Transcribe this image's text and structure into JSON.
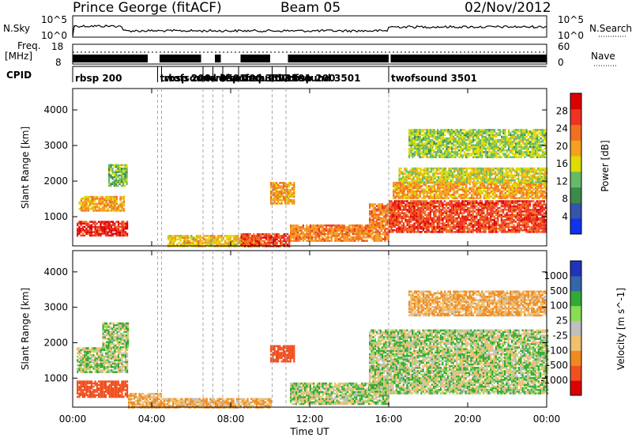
{
  "header": {
    "station": "Prince George (fitACF)",
    "beam": "Beam 05",
    "date": "02/Nov/2012"
  },
  "top_panels": {
    "nsky_label": "N.Sky",
    "nsky_ticks": [
      "10^5",
      "10^0"
    ],
    "nsearch_label": "N.Search",
    "nsearch_ticks": [
      "10^5",
      "10^0"
    ],
    "freq_label": "Freq.",
    "freq_unit": "[MHz]",
    "freq_ticks": [
      "18",
      "8"
    ],
    "nave_label": "Nave",
    "nave_ticks": [
      "60",
      "0"
    ],
    "cpid_label": "CPID"
  },
  "cpid_segments": [
    {
      "label": "rbsp 200",
      "start_hr": 0.0
    },
    {
      "label": "twofsound 3501",
      "start_hr": 4.3
    },
    {
      "label": "rbsp 200",
      "start_hr": 4.5
    },
    {
      "label": "twofsound 3501",
      "start_hr": 6.6
    },
    {
      "label": "rbsp 200",
      "start_hr": 7.1
    },
    {
      "label": "twofsound 3501",
      "start_hr": 7.6
    },
    {
      "label": "rbsp 200",
      "start_hr": 8.4
    },
    {
      "label": "twofsound 3501",
      "start_hr": 10.1
    },
    {
      "label": "rbsp 200",
      "start_hr": 10.8
    },
    {
      "label": "twofsound 3501",
      "start_hr": 16.0
    }
  ],
  "x_axis": {
    "label": "Time UT",
    "ticks": [
      "00:00",
      "04:00",
      "08:00",
      "12:00",
      "16:00",
      "20:00",
      "00:00"
    ]
  },
  "y_axis": {
    "label": "Slant Range [km]",
    "ticks": [
      "1000",
      "2000",
      "3000",
      "4000"
    ]
  },
  "power_colorbar": {
    "label": "Power [dB]",
    "ticks": [
      "4",
      "8",
      "12",
      "16",
      "20",
      "24",
      "28"
    ],
    "colors": [
      "#1133ee",
      "#3355aa",
      "#3d8a4a",
      "#66bb66",
      "#dddd00",
      "#f4a020",
      "#f07020",
      "#ee3322",
      "#dd0000"
    ]
  },
  "velocity_colorbar": {
    "label": "Velocity [m s^-1]",
    "ticks": [
      "1000",
      "500",
      "100",
      "25",
      "-25",
      "-100",
      "-500",
      "-1000"
    ],
    "colors": [
      "#2233bb",
      "#3366aa",
      "#33aa33",
      "#88dd55",
      "#bfbfbf",
      "#eec070",
      "#f08a20",
      "#f05020",
      "#dd0000"
    ]
  },
  "chart_data": [
    {
      "type": "heatmap",
      "title": "",
      "xlabel": "Time UT",
      "ylabel": "Slant Range [km]",
      "colorbar_label": "Power [dB]",
      "xlim_hr": [
        0,
        24
      ],
      "ylim_km": [
        180,
        4600
      ],
      "clim_db": [
        0,
        32
      ],
      "bands": [
        {
          "t0": 0.2,
          "t1": 2.8,
          "r0": 500,
          "r1": 900,
          "value": 28
        },
        {
          "t0": 0.3,
          "t1": 2.6,
          "r0": 1200,
          "r1": 1600,
          "value": 20
        },
        {
          "t0": 1.8,
          "t1": 2.7,
          "r0": 1900,
          "r1": 2500,
          "value": 12
        },
        {
          "t0": 4.8,
          "t1": 9.5,
          "r0": 200,
          "r1": 500,
          "value": 18
        },
        {
          "t0": 8.5,
          "t1": 11.0,
          "r0": 200,
          "r1": 550,
          "value": 26
        },
        {
          "t0": 10.0,
          "t1": 11.2,
          "r0": 1400,
          "r1": 2000,
          "value": 20
        },
        {
          "t0": 11.0,
          "t1": 16.0,
          "r0": 350,
          "r1": 800,
          "value": 22
        },
        {
          "t0": 15.0,
          "t1": 16.5,
          "r0": 800,
          "r1": 1400,
          "value": 22
        },
        {
          "t0": 16.0,
          "t1": 24.0,
          "r0": 600,
          "r1": 1500,
          "value": 26
        },
        {
          "t0": 16.2,
          "t1": 24.0,
          "r0": 1550,
          "r1": 2000,
          "value": 20
        },
        {
          "t0": 16.5,
          "t1": 24.0,
          "r0": 2000,
          "r1": 2400,
          "value": 16
        },
        {
          "t0": 17.0,
          "t1": 24.0,
          "r0": 2700,
          "r1": 3500,
          "value": 14
        }
      ]
    },
    {
      "type": "heatmap",
      "title": "",
      "xlabel": "Time UT",
      "ylabel": "Slant Range [km]",
      "colorbar_label": "Velocity [m s^-1]",
      "xlim_hr": [
        0,
        24
      ],
      "ylim_km": [
        180,
        4600
      ],
      "clim_ms": [
        -1000,
        1000
      ],
      "bands": [
        {
          "t0": 0.2,
          "t1": 2.8,
          "r0": 500,
          "r1": 950,
          "value": -500
        },
        {
          "t0": 0.2,
          "t1": 2.8,
          "r0": 1200,
          "r1": 1900,
          "value": 0
        },
        {
          "t0": 1.5,
          "t1": 2.8,
          "r0": 1900,
          "r1": 2600,
          "value": 0
        },
        {
          "t0": 2.8,
          "t1": 4.5,
          "r0": 200,
          "r1": 600,
          "value": -100
        },
        {
          "t0": 4.5,
          "t1": 10.0,
          "r0": 200,
          "r1": 450,
          "value": -100
        },
        {
          "t0": 10.0,
          "t1": 11.2,
          "r0": 1500,
          "r1": 1950,
          "value": -500
        },
        {
          "t0": 11.0,
          "t1": 16.0,
          "r0": 300,
          "r1": 900,
          "value": 0
        },
        {
          "t0": 15.0,
          "t1": 24.0,
          "r0": 600,
          "r1": 2400,
          "value": 0
        },
        {
          "t0": 17.0,
          "t1": 24.0,
          "r0": 2800,
          "r1": 3500,
          "value": -100
        }
      ]
    }
  ]
}
